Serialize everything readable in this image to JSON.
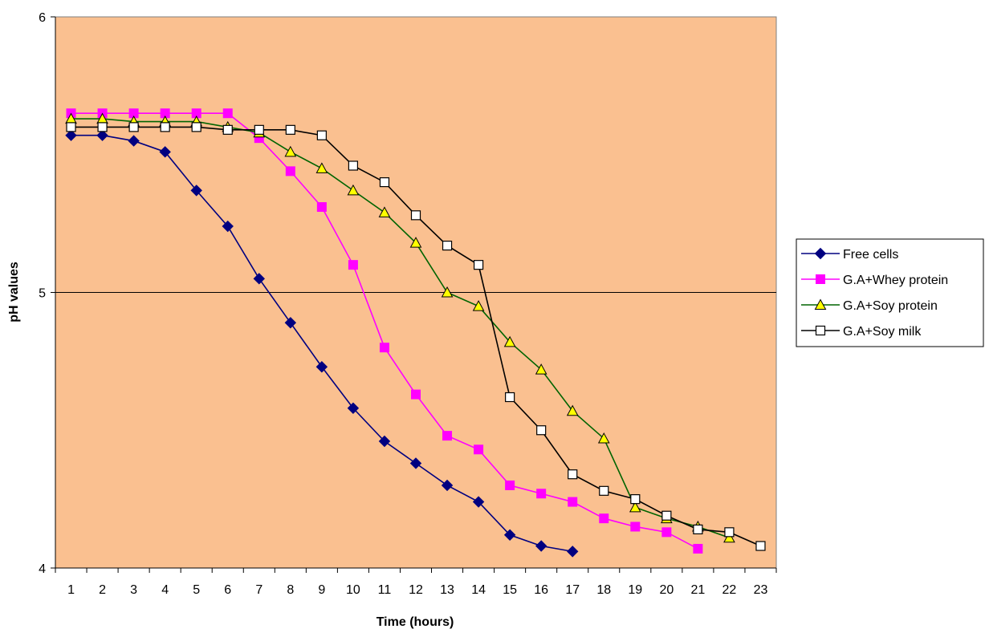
{
  "chart_data": {
    "type": "line",
    "title": "",
    "xlabel": "Time (hours)",
    "ylabel": "pH values",
    "x": [
      1,
      2,
      3,
      4,
      5,
      6,
      7,
      8,
      9,
      10,
      11,
      12,
      13,
      14,
      15,
      16,
      17,
      18,
      19,
      20,
      21,
      22,
      23
    ],
    "xlim": [
      0.5,
      23.5
    ],
    "ylim": [
      4,
      6
    ],
    "yticks": [
      4,
      5,
      6
    ],
    "grid": "horizontal major gridlines at y = 5",
    "plot_background": "#FAC090",
    "legend_position": "right",
    "series": [
      {
        "name": "Free cells",
        "color": "#000080",
        "marker": "diamond-filled",
        "x": [
          1,
          2,
          3,
          4,
          5,
          6,
          7,
          8,
          9,
          10,
          11,
          12,
          13,
          14,
          15,
          16,
          17
        ],
        "values": [
          5.57,
          5.57,
          5.55,
          5.51,
          5.37,
          5.24,
          5.05,
          4.89,
          4.73,
          4.58,
          4.46,
          4.38,
          4.3,
          4.24,
          4.12,
          4.08,
          4.06
        ]
      },
      {
        "name": "G.A+Whey protein",
        "color": "#FF00FF",
        "marker": "square-filled",
        "x": [
          1,
          2,
          3,
          4,
          5,
          6,
          7,
          8,
          9,
          10,
          11,
          12,
          13,
          14,
          15,
          16,
          17,
          18,
          19,
          20,
          21
        ],
        "values": [
          5.65,
          5.65,
          5.65,
          5.65,
          5.65,
          5.65,
          5.56,
          5.44,
          5.31,
          5.1,
          4.8,
          4.63,
          4.48,
          4.43,
          4.3,
          4.27,
          4.24,
          4.18,
          4.15,
          4.13,
          4.07
        ]
      },
      {
        "name": "G.A+Soy protein",
        "color": "#006400",
        "marker_fill": "#FFFF00",
        "marker": "triangle",
        "x": [
          1,
          2,
          3,
          4,
          5,
          6,
          7,
          8,
          9,
          10,
          11,
          12,
          13,
          14,
          15,
          16,
          17,
          18,
          19,
          20,
          21,
          22
        ],
        "values": [
          5.63,
          5.63,
          5.62,
          5.62,
          5.62,
          5.6,
          5.58,
          5.51,
          5.45,
          5.37,
          5.29,
          5.18,
          5.0,
          4.95,
          4.82,
          4.72,
          4.57,
          4.47,
          4.22,
          4.18,
          4.15,
          4.11
        ]
      },
      {
        "name": "G.A+Soy milk",
        "color": "#000000",
        "marker_fill": "#FFFFFF",
        "marker": "square-open",
        "x": [
          1,
          2,
          3,
          4,
          5,
          6,
          7,
          8,
          9,
          10,
          11,
          12,
          13,
          14,
          15,
          16,
          17,
          18,
          19,
          20,
          21,
          22,
          23
        ],
        "values": [
          5.6,
          5.6,
          5.6,
          5.6,
          5.6,
          5.59,
          5.59,
          5.59,
          5.57,
          5.46,
          5.4,
          5.28,
          5.17,
          5.1,
          4.62,
          4.5,
          4.34,
          4.28,
          4.25,
          4.19,
          4.14,
          4.13,
          4.08
        ]
      }
    ]
  }
}
